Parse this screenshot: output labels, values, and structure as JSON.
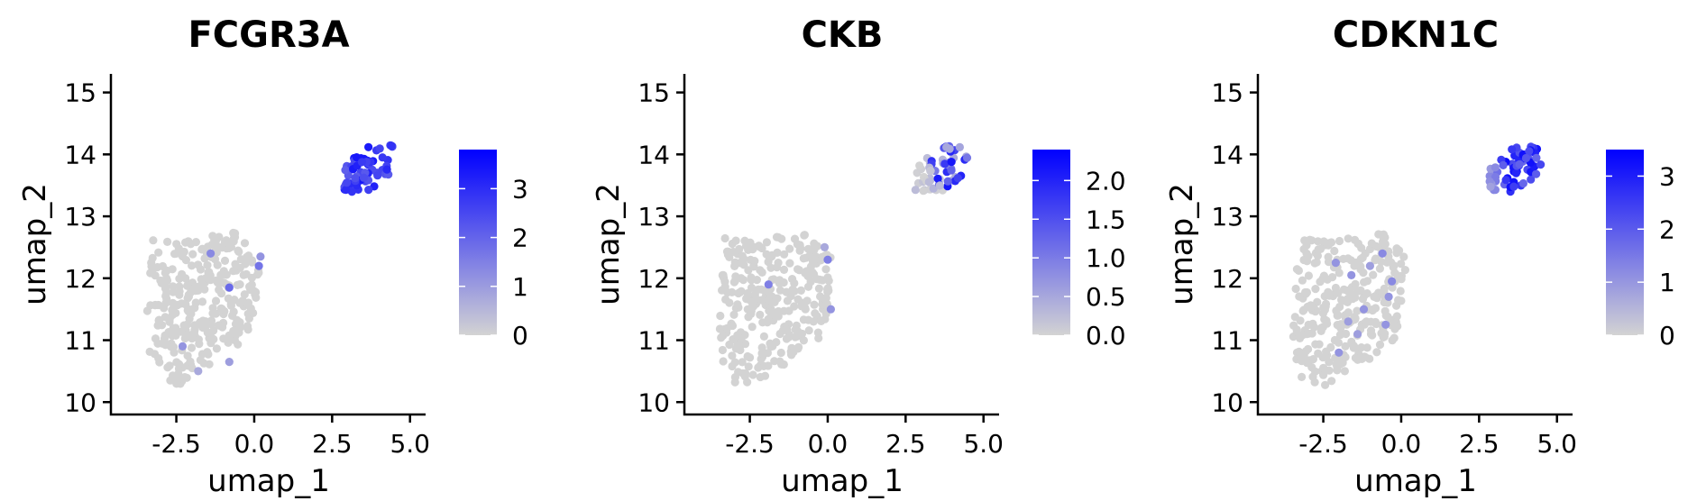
{
  "chart_data": [
    {
      "type": "scatter",
      "title": "FCGR3A",
      "xlabel": "umap_1",
      "ylabel": "umap_2",
      "xlim": [
        -4.6,
        5.5
      ],
      "ylim": [
        9.8,
        15.3
      ],
      "xticks": [
        "-2.5",
        "0.0",
        "2.5",
        "5.0"
      ],
      "yticks": [
        "10",
        "11",
        "12",
        "13",
        "14",
        "15"
      ],
      "colorbar": {
        "min": 0,
        "max": 3.8,
        "ticks": [
          "0",
          "1",
          "2",
          "3"
        ],
        "low_color": "#d3d3d3",
        "high_color": "#0000ff"
      },
      "seed": 11,
      "highlights": [
        [
          -1.4,
          12.4,
          0.35
        ],
        [
          -0.8,
          11.85,
          0.5
        ],
        [
          0.15,
          12.2,
          0.45
        ],
        [
          -2.3,
          10.9,
          0.3
        ],
        [
          -0.8,
          10.65,
          0.25
        ],
        [
          0.2,
          12.35,
          0.3
        ],
        [
          -1.8,
          10.5,
          0.2
        ]
      ]
    },
    {
      "type": "scatter",
      "title": "CKB",
      "xlabel": "umap_1",
      "ylabel": "umap_2",
      "xlim": [
        -4.6,
        5.5
      ],
      "ylim": [
        9.8,
        15.3
      ],
      "xticks": [
        "-2.5",
        "0.0",
        "2.5",
        "5.0"
      ],
      "yticks": [
        "10",
        "11",
        "12",
        "13",
        "14",
        "15"
      ],
      "colorbar": {
        "min": 0,
        "max": 2.4,
        "ticks": [
          "0.0",
          "0.5",
          "1.0",
          "1.5",
          "2.0"
        ],
        "low_color": "#d3d3d3",
        "high_color": "#0000ff"
      },
      "seed": 22,
      "highlights": [
        [
          -1.9,
          11.9,
          0.4
        ],
        [
          0.0,
          12.3,
          0.4
        ],
        [
          0.1,
          11.5,
          0.3
        ],
        [
          -0.1,
          12.5,
          0.2
        ]
      ]
    },
    {
      "type": "scatter",
      "title": "CDKN1C",
      "xlabel": "umap_1",
      "ylabel": "umap_2",
      "xlim": [
        -4.6,
        5.5
      ],
      "ylim": [
        9.8,
        15.3
      ],
      "xticks": [
        "-2.5",
        "0.0",
        "2.5",
        "5.0"
      ],
      "yticks": [
        "10",
        "11",
        "12",
        "13",
        "14",
        "15"
      ],
      "colorbar": {
        "min": 0,
        "max": 3.5,
        "ticks": [
          "0",
          "1",
          "2",
          "3"
        ],
        "low_color": "#d3d3d3",
        "high_color": "#0000ff"
      },
      "seed": 33,
      "highlights": [
        [
          -2.1,
          12.25,
          0.3
        ],
        [
          -0.6,
          12.4,
          0.35
        ],
        [
          -1.6,
          12.05,
          0.3
        ],
        [
          -0.3,
          11.95,
          0.35
        ],
        [
          -1.2,
          11.5,
          0.3
        ],
        [
          -0.5,
          11.25,
          0.3
        ],
        [
          -2.0,
          10.8,
          0.3
        ],
        [
          -1.4,
          11.1,
          0.25
        ],
        [
          -0.4,
          11.7,
          0.3
        ],
        [
          -1.0,
          12.2,
          0.25
        ],
        [
          -1.7,
          11.3,
          0.25
        ]
      ]
    }
  ]
}
